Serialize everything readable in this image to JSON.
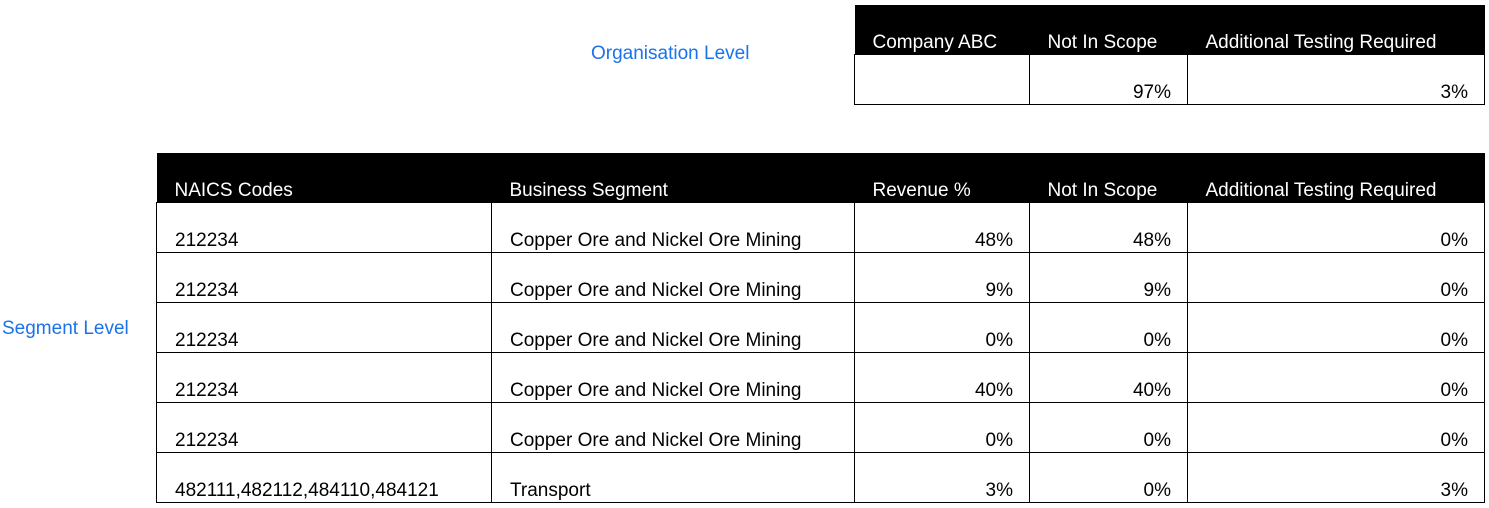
{
  "org_label": "Organisation Level",
  "segment_label": "Segment Level",
  "org_table": {
    "headers": [
      "Company ABC",
      "Not In Scope",
      "Additional Testing Required"
    ],
    "row": [
      "",
      "97%",
      "3%"
    ]
  },
  "segment_table": {
    "headers": [
      "NAICS Codes",
      "Business Segment",
      "Revenue %",
      "Not In Scope",
      "Additional Testing Required"
    ],
    "rows": [
      [
        "212234",
        "Copper Ore and Nickel Ore Mining",
        "48%",
        "48%",
        "0%"
      ],
      [
        "212234",
        "Copper Ore and Nickel Ore Mining",
        "9%",
        "9%",
        "0%"
      ],
      [
        "212234",
        "Copper Ore and Nickel Ore Mining",
        "0%",
        "0%",
        "0%"
      ],
      [
        "212234",
        "Copper Ore and Nickel Ore Mining",
        "40%",
        "40%",
        "0%"
      ],
      [
        "212234",
        "Copper Ore and Nickel Ore Mining",
        "0%",
        "0%",
        "0%"
      ],
      [
        "482111,482112,484110,484121",
        "Transport",
        "3%",
        "0%",
        "3%"
      ]
    ]
  }
}
